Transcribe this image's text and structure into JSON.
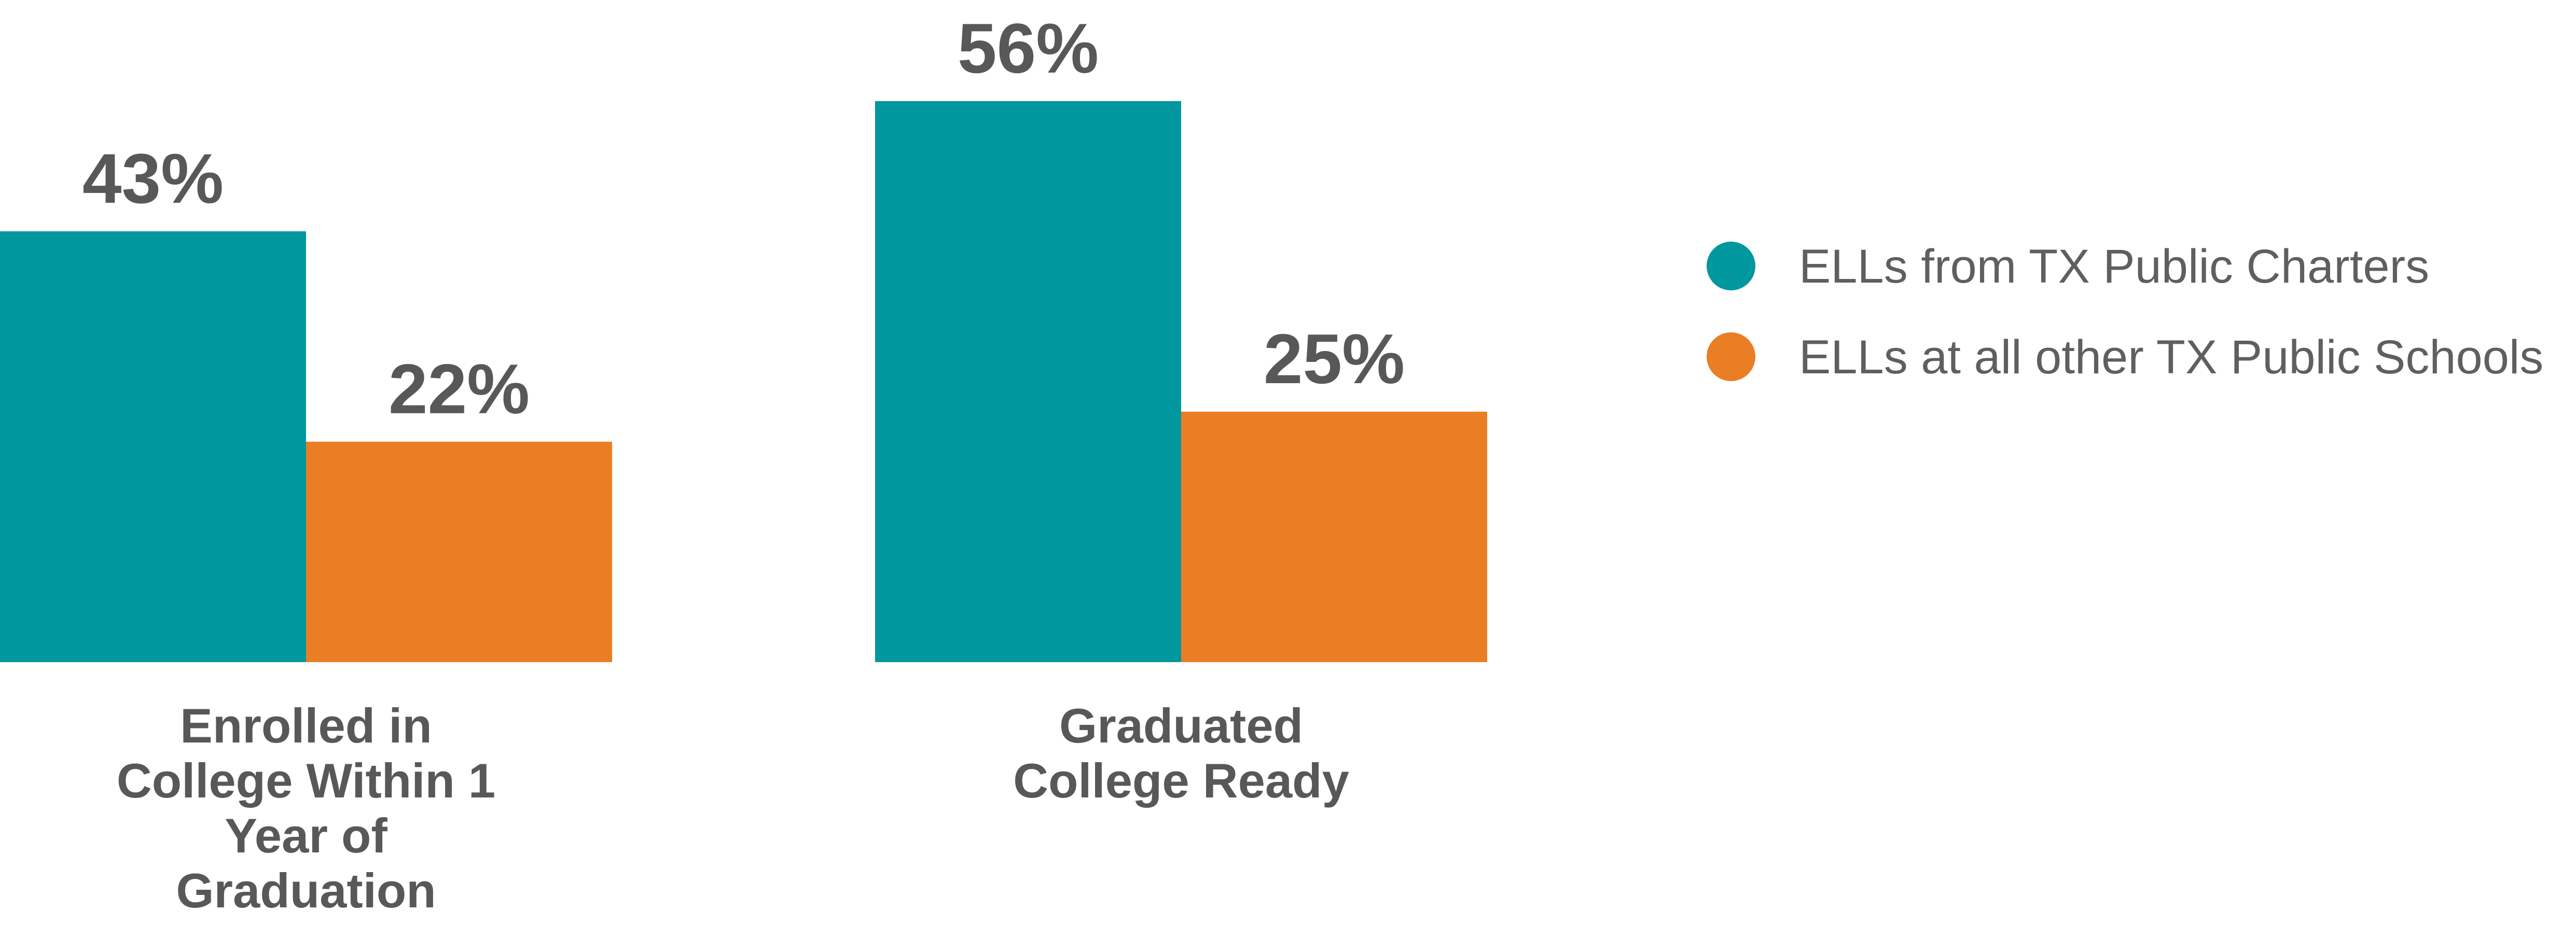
{
  "chart_data": {
    "type": "bar",
    "categories": [
      [
        "Enrolled in",
        "College Within 1",
        "Year of",
        "Graduation"
      ],
      [
        "Graduated",
        "College Ready"
      ]
    ],
    "series": [
      {
        "name": "ELLs from TX Public Charters",
        "color": "#00979e",
        "values": [
          43,
          56
        ],
        "labels": [
          "43%",
          "56%"
        ]
      },
      {
        "name": "ELLs at all other TX Public Schools",
        "color": "#ea7e24",
        "values": [
          22,
          25
        ],
        "labels": [
          "22%",
          "25%"
        ]
      }
    ],
    "ylim": [
      0,
      56
    ],
    "grid": false,
    "legend_position": "right"
  }
}
